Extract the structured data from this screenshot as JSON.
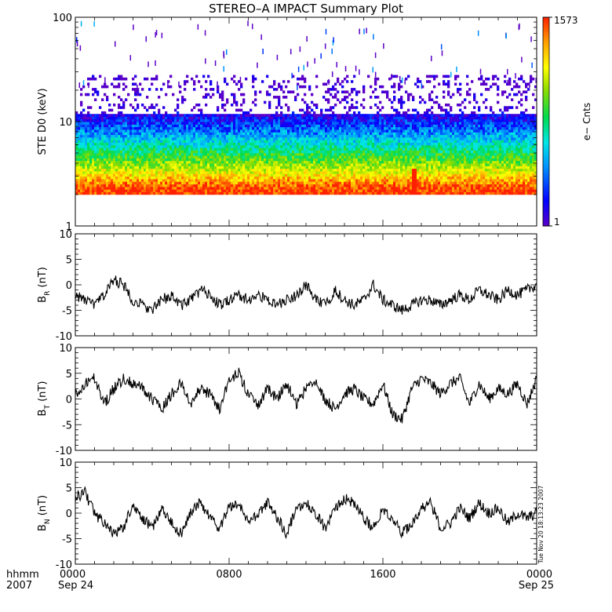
{
  "title": "STEREO–A IMPACT Summary Plot",
  "colorbar": {
    "label": "e− Cnts",
    "min": 1,
    "max": 1573,
    "tick_labels": [
      "1573",
      "1"
    ]
  },
  "time_axis": {
    "row1_labels": [
      "hhmm",
      "0000",
      "0800",
      "1600",
      "0000"
    ],
    "row2_labels": [
      "2007",
      "Sep 24",
      "Sep 25"
    ]
  },
  "timestamp": "Tue Nov 20 18:13:23 2007",
  "chart_data": [
    {
      "type": "heatmap",
      "title": "STEREO–A IMPACT Summary Plot",
      "ylabel": "STE D0 (keV)",
      "yscale": "log",
      "ylim": [
        1,
        100
      ],
      "y_tick_labels": [
        "100",
        "10",
        "1"
      ],
      "xlim_hours": [
        0,
        24
      ],
      "x_tick_labels": [
        "0000",
        "0800",
        "1600",
        "0000"
      ],
      "color_range": [
        1,
        1573
      ],
      "colormap": [
        "#5a00c8",
        "#0000ff",
        "#0090ff",
        "#00e6e6",
        "#00dc50",
        "#8cdc00",
        "#ffff00",
        "#ffa000",
        "#ff2000"
      ],
      "energy_min_keV": 2.0,
      "profile": [
        {
          "energy_keV": 2.0,
          "counts": 1450
        },
        {
          "energy_keV": 2.3,
          "counts": 1250
        },
        {
          "energy_keV": 2.7,
          "counts": 600
        },
        {
          "energy_keV": 3.2,
          "counts": 250
        },
        {
          "energy_keV": 4.0,
          "counts": 95
        },
        {
          "energy_keV": 5.0,
          "counts": 40
        },
        {
          "energy_keV": 6.5,
          "counts": 14
        },
        {
          "energy_keV": 8.5,
          "counts": 5
        },
        {
          "energy_keV": 11.0,
          "counts": 2
        },
        {
          "energy_keV": 14.0,
          "counts": 1
        },
        {
          "energy_keV": 20.0,
          "counts": 1
        },
        {
          "energy_keV": 28.0,
          "counts": 1
        }
      ],
      "enhancement": {
        "time_hours": 17.6,
        "energy_keV": 3.0,
        "counts": 1573
      }
    },
    {
      "type": "line",
      "ylabel": "BR (nT)",
      "ylim": [
        -10,
        10
      ],
      "y_tick_labels": [
        "10",
        "5",
        "0",
        "-5",
        "-10"
      ],
      "x_hours": [
        0,
        0.5,
        1,
        1.5,
        2,
        2.5,
        3,
        3.5,
        4,
        4.5,
        5,
        5.5,
        6,
        6.5,
        7,
        7.5,
        8,
        8.5,
        9,
        9.5,
        10,
        10.5,
        11,
        11.5,
        12,
        12.5,
        13,
        13.5,
        14,
        14.5,
        15,
        15.5,
        16,
        16.5,
        17,
        17.5,
        18,
        18.5,
        19,
        19.5,
        20,
        20.5,
        21,
        21.5,
        22,
        22.5,
        23,
        23.5,
        24
      ],
      "values": [
        -2,
        -3,
        -4,
        -2,
        1,
        0,
        -3,
        -4,
        -5,
        -3,
        -2,
        -4,
        -3,
        -1,
        -2,
        -4,
        -3,
        -2,
        -3,
        -2,
        -3,
        -4,
        -3,
        -2,
        0,
        -3,
        -4,
        -1,
        -3,
        -4,
        -3,
        0,
        -3,
        -4,
        -5,
        -4,
        -3,
        -3,
        -4,
        -3,
        -2,
        -3,
        -1,
        -2,
        -3,
        -1,
        -2,
        -1,
        0
      ]
    },
    {
      "type": "line",
      "ylabel": "BT (nT)",
      "ylim": [
        -10,
        10
      ],
      "y_tick_labels": [
        "10",
        "5",
        "0",
        "-5",
        "-10"
      ],
      "x_hours": [
        0,
        0.5,
        1,
        1.5,
        2,
        2.5,
        3,
        3.5,
        4,
        4.5,
        5,
        5.5,
        6,
        6.5,
        7,
        7.5,
        8,
        8.5,
        9,
        9.5,
        10,
        10.5,
        11,
        11.5,
        12,
        12.5,
        13,
        13.5,
        14,
        14.5,
        15,
        15.5,
        16,
        16.5,
        17,
        17.5,
        18,
        18.5,
        19,
        19.5,
        20,
        20.5,
        21,
        21.5,
        22,
        22.5,
        23,
        23.5,
        24
      ],
      "values": [
        1,
        3,
        4,
        -1,
        2,
        4,
        3,
        2,
        0,
        -2,
        1,
        3,
        -1,
        2,
        1,
        -2,
        4,
        5,
        1,
        -1,
        2,
        0,
        3,
        -1,
        2,
        3,
        0,
        -2,
        1,
        2,
        0,
        -1,
        3,
        -3,
        -4,
        2,
        4,
        3,
        1,
        3,
        4,
        -1,
        3,
        0,
        2,
        1,
        3,
        -1,
        4
      ]
    },
    {
      "type": "line",
      "ylabel": "BN (nT)",
      "ylim": [
        -10,
        10
      ],
      "y_tick_labels": [
        "10",
        "5",
        "0",
        "-5",
        "-10"
      ],
      "x_hours": [
        0,
        0.5,
        1,
        1.5,
        2,
        2.5,
        3,
        3.5,
        4,
        4.5,
        5,
        5.5,
        6,
        6.5,
        7,
        7.5,
        8,
        8.5,
        9,
        9.5,
        10,
        10.5,
        11,
        11.5,
        12,
        12.5,
        13,
        13.5,
        14,
        14.5,
        15,
        15.5,
        16,
        16.5,
        17,
        17.5,
        18,
        18.5,
        19,
        19.5,
        20,
        20.5,
        21,
        21.5,
        22,
        22.5,
        23,
        23.5,
        24
      ],
      "values": [
        3,
        4,
        0,
        -2,
        -4,
        -3,
        2,
        -1,
        -3,
        1,
        -2,
        -4,
        0,
        2,
        -1,
        -3,
        1,
        2,
        -2,
        0,
        2,
        -1,
        -4,
        1,
        2,
        0,
        -3,
        1,
        3,
        2,
        -1,
        -3,
        1,
        -1,
        -4,
        -2,
        1,
        2,
        -3,
        -2,
        1,
        -1,
        2,
        0,
        1,
        -2,
        0,
        -1,
        0
      ]
    }
  ]
}
